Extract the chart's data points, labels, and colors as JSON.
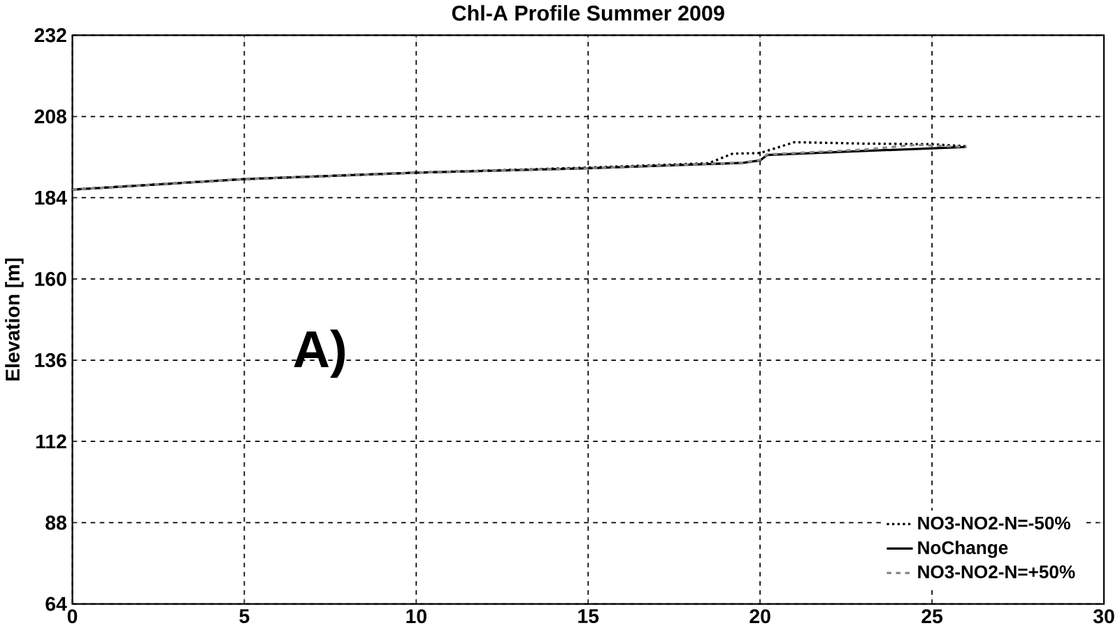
{
  "chart_data": {
    "type": "line",
    "title": "Chl-A Profile Summer 2009",
    "ylabel": "Elevation [m]",
    "xlim": [
      0,
      30
    ],
    "ylim": [
      64,
      232
    ],
    "xticks": [
      0,
      5,
      10,
      15,
      20,
      25,
      30
    ],
    "yticks": [
      64,
      88,
      112,
      136,
      160,
      184,
      208,
      232
    ],
    "grid": true,
    "legend": "bottom right",
    "annotations": [
      "A)"
    ],
    "series": [
      {
        "name": "NO3-NO2-N=-50%",
        "color": "#000000",
        "line_style": "dotted",
        "x": [
          0,
          5,
          10,
          15,
          18.5,
          19.2,
          20,
          21,
          23,
          25,
          26
        ],
        "values": [
          186.4,
          189.5,
          191.4,
          192.9,
          194.2,
          197.0,
          197.2,
          200.4,
          200.0,
          199.8,
          199.2
        ]
      },
      {
        "name": "NoChange",
        "color": "#000000",
        "line_style": "solid",
        "x": [
          0,
          5,
          10,
          15,
          19.5,
          20,
          20.2,
          23,
          25,
          26
        ],
        "values": [
          186.4,
          189.5,
          191.4,
          192.7,
          194.3,
          195.0,
          196.6,
          197.8,
          198.6,
          199.0
        ]
      },
      {
        "name": "NO3-NO2-N=+50%",
        "color": "#888888",
        "line_style": "dashed",
        "x": [
          0,
          5,
          10,
          15,
          19.5,
          20,
          20.2,
          23,
          24.5,
          26
        ],
        "values": [
          186.4,
          189.5,
          191.4,
          192.7,
          194.4,
          195.2,
          196.8,
          198.2,
          199.6,
          199.0
        ]
      }
    ]
  }
}
